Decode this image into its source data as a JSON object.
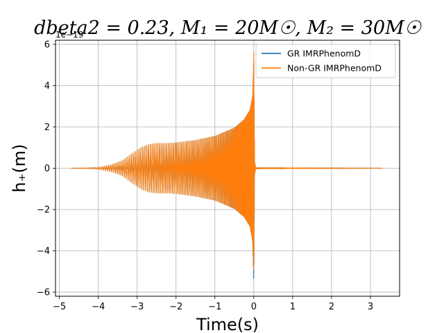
{
  "chart_data": {
    "type": "line",
    "title": "dbeta2 = 0.23, M₁ = 20M☉, M₂ = 30M☉",
    "xlabel": "Time(s)",
    "ylabel": "h₊(m)",
    "y_offset_label": "1e−19",
    "xlim": [
      -5.1,
      3.75
    ],
    "ylim": [
      -6.2,
      6.2
    ],
    "x_ticks": [
      -5,
      -4,
      -3,
      -2,
      -1,
      0,
      1,
      2,
      3
    ],
    "x_tick_labels": [
      "−5",
      "−4",
      "−3",
      "−2",
      "−1",
      "0",
      "1",
      "2",
      "3"
    ],
    "y_ticks": [
      -6,
      -4,
      -2,
      0,
      2,
      4,
      6
    ],
    "y_tick_labels": [
      "−6",
      "−4",
      "−2",
      "0",
      "2",
      "4",
      "6"
    ],
    "grid": true,
    "legend_position": "top-right",
    "series": [
      {
        "name": "GR IMRPhenomD",
        "color": "#1f77b4",
        "envelope": {
          "x": [
            -4.7,
            -4.3,
            -4.0,
            -3.7,
            -3.4,
            -3.1,
            -2.9,
            -2.7,
            -2.5,
            -2.2,
            -1.9,
            -1.5,
            -1.0,
            -0.5,
            -0.25,
            -0.1,
            -0.03,
            0.0,
            0.02,
            0.05,
            3.3
          ],
          "upper": [
            0.0,
            0.02,
            0.05,
            0.15,
            0.35,
            0.75,
            1.0,
            1.15,
            1.2,
            1.2,
            1.25,
            1.35,
            1.55,
            1.95,
            2.35,
            2.8,
            3.5,
            5.2,
            0.3,
            0.02,
            0.0
          ],
          "lower": [
            0.0,
            -0.02,
            -0.05,
            -0.15,
            -0.35,
            -0.75,
            -1.0,
            -1.15,
            -1.2,
            -1.2,
            -1.25,
            -1.35,
            -1.55,
            -1.95,
            -2.35,
            -2.8,
            -3.5,
            -5.6,
            -0.3,
            -0.02,
            0.0
          ]
        }
      },
      {
        "name": "Non-GR IMRPhenomD",
        "color": "#ff7f0e",
        "envelope": {
          "x": [
            -4.7,
            -4.3,
            -4.0,
            -3.7,
            -3.4,
            -3.1,
            -2.9,
            -2.7,
            -2.5,
            -2.2,
            -1.9,
            -1.5,
            -1.0,
            -0.5,
            -0.25,
            -0.1,
            -0.03,
            0.0,
            0.02,
            0.05,
            3.3
          ],
          "upper": [
            0.0,
            0.02,
            0.05,
            0.15,
            0.35,
            0.75,
            1.0,
            1.15,
            1.2,
            1.2,
            1.25,
            1.35,
            1.55,
            1.95,
            2.35,
            2.8,
            3.5,
            5.6,
            0.3,
            0.02,
            0.0
          ],
          "lower": [
            0.0,
            -0.02,
            -0.05,
            -0.15,
            -0.35,
            -0.75,
            -1.0,
            -1.15,
            -1.2,
            -1.2,
            -1.25,
            -1.35,
            -1.55,
            -1.95,
            -2.35,
            -2.8,
            -3.5,
            -5.1,
            -0.3,
            -0.02,
            0.0
          ]
        }
      }
    ]
  }
}
